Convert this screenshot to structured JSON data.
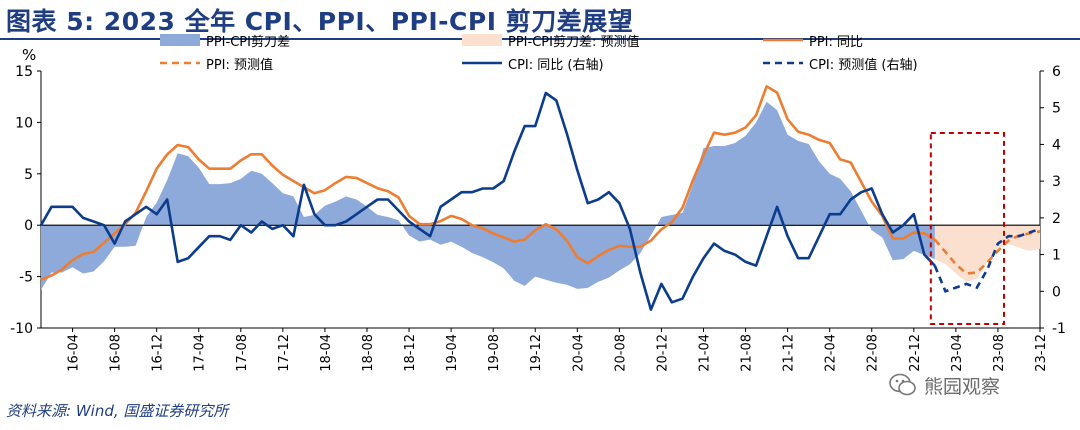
{
  "title": "图表 5: 2023 全年 CPI、PPI、PPI-CPI 剪刀差展望",
  "source": "资料来源: Wind, 国盛证券研究所",
  "watermark": "熊园观察",
  "colors": {
    "title": "#1f3e82",
    "gap_fill": "#8eaadb",
    "gap_forecast_fill": "#fbe0d0",
    "ppi": "#ed7d31",
    "cpi": "#0c3c8c",
    "highlight_box": "#c00000"
  },
  "chart_data": {
    "type": "line",
    "ylabel_left": "%",
    "ylim_left": [
      -10,
      15
    ],
    "yticks_left": [
      "15",
      "10",
      "5",
      "0",
      "-5",
      "-10"
    ],
    "ylim_right": [
      -1,
      6
    ],
    "yticks_right": [
      "6",
      "5",
      "4",
      "3",
      "2",
      "1",
      "0",
      "-1"
    ],
    "x_tick_labels": [
      "16-04",
      "16-08",
      "16-12",
      "17-04",
      "17-08",
      "17-12",
      "18-04",
      "18-08",
      "18-12",
      "19-04",
      "19-08",
      "19-12",
      "20-04",
      "20-08",
      "20-12",
      "21-04",
      "21-08",
      "21-12",
      "22-04",
      "22-08",
      "22-12",
      "23-04",
      "23-08",
      "23-12"
    ],
    "legend": [
      {
        "key": "gap",
        "label": "PPI-CPI剪刀差",
        "style": "area"
      },
      {
        "key": "gap_forecast",
        "label": "PPI-CPI剪刀差: 预测值",
        "style": "area-light"
      },
      {
        "key": "ppi",
        "label": "PPI: 同比",
        "style": "solid-orange"
      },
      {
        "key": "ppi_forecast",
        "label": "PPI: 预测值",
        "style": "dashed-orange"
      },
      {
        "key": "cpi",
        "label": "CPI: 同比 (右轴)",
        "style": "solid-blue"
      },
      {
        "key": "cpi_forecast",
        "label": "CPI: 预测值 (右轴)",
        "style": "dashed-blue"
      }
    ],
    "x_start": "2016-01",
    "x_end": "2023-12",
    "actual_end": "2023-02",
    "highlight_range": [
      "2023-02",
      "2023-12"
    ],
    "ppi": [
      -5.3,
      -4.9,
      -4.3,
      -3.4,
      -2.8,
      -2.6,
      -1.7,
      -0.8,
      0.1,
      1.2,
      3.3,
      5.5,
      6.9,
      7.8,
      7.6,
      6.4,
      5.5,
      5.5,
      5.5,
      6.3,
      6.9,
      6.9,
      5.8,
      4.9,
      4.3,
      3.7,
      3.1,
      3.4,
      4.1,
      4.7,
      4.6,
      4.1,
      3.6,
      3.3,
      2.7,
      0.9,
      0.1,
      0.1,
      0.4,
      0.9,
      0.6,
      0.0,
      -0.3,
      -0.8,
      -1.2,
      -1.6,
      -1.4,
      -0.5,
      0.1,
      -0.4,
      -1.5,
      -3.1,
      -3.7,
      -3.0,
      -2.4,
      -2.0,
      -2.1,
      -2.1,
      -1.5,
      -0.4,
      0.3,
      1.7,
      4.4,
      6.8,
      9.0,
      8.8,
      9.0,
      9.5,
      10.7,
      13.5,
      12.9,
      10.3,
      9.1,
      8.8,
      8.3,
      8.0,
      6.4,
      6.1,
      4.2,
      2.3,
      0.9,
      -1.3,
      -1.3,
      -0.7,
      -0.8,
      -1.4
    ],
    "ppi_forecast": [
      -1.4,
      -2.6,
      -3.8,
      -4.7,
      -4.6,
      -3.6,
      -2.5,
      -1.5,
      -1.0,
      -0.8,
      -0.6
    ],
    "gap": [
      -6.3,
      -4.6,
      -4.6,
      -4.1,
      -4.7,
      -4.5,
      -3.5,
      -2.1,
      -2.1,
      -2.0,
      0.8,
      2.2,
      4.4,
      7.0,
      6.7,
      5.6,
      4.0,
      4.0,
      4.1,
      4.5,
      5.3,
      5.0,
      4.1,
      3.1,
      2.8,
      0.8,
      1.0,
      1.9,
      2.3,
      2.8,
      2.5,
      1.8,
      1.0,
      0.8,
      0.5,
      -1.0,
      -1.6,
      -1.4,
      -1.9,
      -1.6,
      -2.1,
      -2.7,
      -3.1,
      -3.6,
      -4.2,
      -5.4,
      -5.9,
      -5.0,
      -5.3,
      -5.6,
      -5.8,
      -6.2,
      -6.1,
      -5.5,
      -5.1,
      -4.4,
      -3.8,
      -2.7,
      -1.0,
      0.8,
      1.0,
      1.2,
      4.0,
      7.5,
      7.7,
      7.7,
      8.0,
      8.7,
      10.0,
      12.0,
      11.2,
      8.8,
      8.2,
      7.9,
      6.2,
      5.0,
      4.5,
      3.3,
      1.4,
      -0.5,
      -1.2,
      -3.4,
      -3.3,
      -2.5,
      -2.9,
      -3.3
    ],
    "gap_forecast": [
      -3.3,
      -3.8,
      -4.7,
      -5.5,
      -5.2,
      -3.6,
      -2.3,
      -1.8,
      -2.2,
      -2.5,
      -2.3
    ],
    "cpi": [
      1.8,
      2.3,
      2.3,
      2.3,
      2.0,
      1.9,
      1.8,
      1.3,
      1.9,
      2.1,
      2.3,
      2.1,
      2.5,
      0.8,
      0.9,
      1.2,
      1.5,
      1.5,
      1.4,
      1.8,
      1.6,
      1.9,
      1.7,
      1.8,
      1.5,
      2.9,
      2.1,
      1.8,
      1.8,
      1.9,
      2.1,
      2.3,
      2.5,
      2.5,
      2.2,
      1.9,
      1.7,
      1.5,
      2.3,
      2.5,
      2.7,
      2.7,
      2.8,
      2.8,
      3.0,
      3.8,
      4.5,
      4.5,
      5.4,
      5.2,
      4.3,
      3.3,
      2.4,
      2.5,
      2.7,
      2.4,
      1.7,
      0.5,
      -0.5,
      0.2,
      -0.3,
      -0.2,
      0.4,
      0.9,
      1.3,
      1.1,
      1.0,
      0.8,
      0.7,
      1.5,
      2.3,
      1.5,
      0.9,
      0.9,
      1.5,
      2.1,
      2.1,
      2.5,
      2.7,
      2.8,
      2.1,
      1.6,
      1.8,
      2.1,
      1.0,
      0.7
    ],
    "cpi_forecast": [
      0.7,
      0.0,
      0.1,
      0.2,
      0.1,
      0.6,
      1.3,
      1.5,
      1.5,
      1.6,
      1.7
    ]
  }
}
